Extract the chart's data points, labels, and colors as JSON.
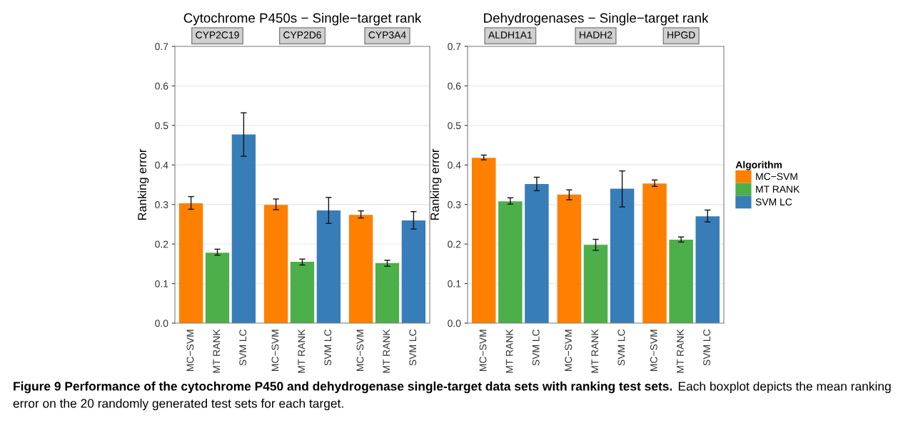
{
  "chart_data": [
    {
      "type": "bar",
      "title": "Cytochrome P450s − Single−target rank",
      "ylabel": "Ranking error",
      "categories": [
        "CYP2C19",
        "CYP2D6",
        "CYP3A4"
      ],
      "series": [
        {
          "name": "MC−SVM",
          "color": "#ff7f00",
          "values": [
            0.303,
            0.299,
            0.274
          ],
          "errors": [
            [
              0.288,
              0.32
            ],
            [
              0.287,
              0.314
            ],
            [
              0.266,
              0.284
            ]
          ]
        },
        {
          "name": "MT RANK",
          "color": "#4daf4a",
          "values": [
            0.178,
            0.155,
            0.152
          ],
          "errors": [
            [
              0.172,
              0.187
            ],
            [
              0.147,
              0.162
            ],
            [
              0.144,
              0.159
            ]
          ]
        },
        {
          "name": "SVM LC",
          "color": "#377eb8",
          "values": [
            0.477,
            0.285,
            0.26
          ],
          "errors": [
            [
              0.422,
              0.532
            ],
            [
              0.252,
              0.318
            ],
            [
              0.238,
              0.282
            ]
          ]
        }
      ],
      "ylim": [
        0,
        0.7
      ],
      "yticks": [
        {
          "value": 0,
          "label": "0.0"
        },
        0.1,
        0.2,
        0.3,
        0.4,
        0.5,
        0.6,
        0.7
      ],
      "grid": "y"
    },
    {
      "type": "bar",
      "title": "Dehydrogenases − Single−target rank",
      "ylabel": "Ranking error",
      "categories": [
        "ALDH1A1",
        "HADH2",
        "HPGD"
      ],
      "series": [
        {
          "name": "MC−SVM",
          "color": "#ff7f00",
          "values": [
            0.418,
            0.325,
            0.353
          ],
          "errors": [
            [
              0.413,
              0.425
            ],
            [
              0.312,
              0.337
            ],
            [
              0.346,
              0.362
            ]
          ]
        },
        {
          "name": "MT RANK",
          "color": "#4daf4a",
          "values": [
            0.308,
            0.198,
            0.211
          ],
          "errors": [
            [
              0.301,
              0.317
            ],
            [
              0.184,
              0.212
            ],
            [
              0.205,
              0.218
            ]
          ]
        },
        {
          "name": "SVM LC",
          "color": "#377eb8",
          "values": [
            0.352,
            0.34,
            0.27
          ],
          "errors": [
            [
              0.335,
              0.369
            ],
            [
              0.294,
              0.385
            ],
            [
              0.256,
              0.286
            ]
          ]
        }
      ],
      "ylim": [
        0,
        0.7
      ],
      "yticks": [
        {
          "value": 0,
          "label": "0.0"
        },
        0.1,
        0.2,
        0.3,
        0.4,
        0.5,
        0.6,
        0.7
      ],
      "grid": "y",
      "legend": "right",
      "legend_title": "Algorithm",
      "annotations": [
        "Figure 9 Performance of the cytochrome P450 and dehydrogenase single-target data sets with ranking test sets.",
        "Each boxplot depicts the mean ranking error on the 20 randomly generated test sets for each target."
      ]
    }
  ]
}
